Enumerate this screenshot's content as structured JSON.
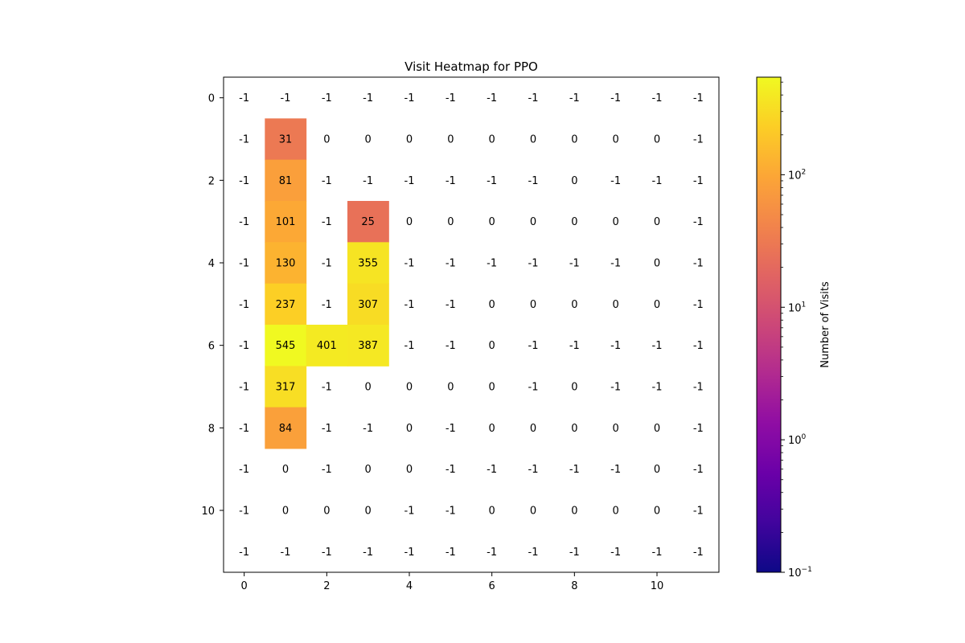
{
  "chart_data": {
    "type": "heatmap",
    "title": "Visit Heatmap for PPO",
    "xlabel": "",
    "ylabel": "",
    "x_tick_labels": [
      "0",
      "2",
      "4",
      "6",
      "8",
      "10"
    ],
    "x_tick_values": [
      0,
      2,
      4,
      6,
      8,
      10
    ],
    "y_tick_labels": [
      "0",
      "2",
      "4",
      "6",
      "8",
      "10"
    ],
    "y_tick_values": [
      0,
      2,
      4,
      6,
      8,
      10
    ],
    "colormap": "plasma",
    "color_scale": "log",
    "clim": [
      0.1,
      545
    ],
    "colorbar": {
      "label": "Number of Visits",
      "ticks": [
        {
          "value": 0.1,
          "base": "10",
          "exp": "−1"
        },
        {
          "value": 1,
          "base": "10",
          "exp": "0"
        },
        {
          "value": 10,
          "base": "10",
          "exp": "1"
        },
        {
          "value": 100,
          "base": "10",
          "exp": "2"
        }
      ]
    },
    "grid": false,
    "rows": 12,
    "cols": 12,
    "values": [
      [
        -1,
        -1,
        -1,
        -1,
        -1,
        -1,
        -1,
        -1,
        -1,
        -1,
        -1,
        -1
      ],
      [
        -1,
        31,
        0,
        0,
        0,
        0,
        0,
        0,
        0,
        0,
        0,
        -1
      ],
      [
        -1,
        81,
        -1,
        -1,
        -1,
        -1,
        -1,
        -1,
        0,
        -1,
        -1,
        -1
      ],
      [
        -1,
        101,
        -1,
        25,
        0,
        0,
        0,
        0,
        0,
        0,
        0,
        -1
      ],
      [
        -1,
        130,
        -1,
        355,
        -1,
        -1,
        -1,
        -1,
        -1,
        -1,
        0,
        -1
      ],
      [
        -1,
        237,
        -1,
        307,
        -1,
        -1,
        0,
        0,
        0,
        0,
        0,
        -1
      ],
      [
        -1,
        545,
        401,
        387,
        -1,
        -1,
        0,
        -1,
        -1,
        -1,
        -1,
        -1
      ],
      [
        -1,
        317,
        -1,
        0,
        0,
        0,
        0,
        -1,
        0,
        -1,
        -1,
        -1
      ],
      [
        -1,
        84,
        -1,
        -1,
        0,
        -1,
        0,
        0,
        0,
        0,
        0,
        -1
      ],
      [
        -1,
        0,
        -1,
        0,
        0,
        -1,
        -1,
        -1,
        -1,
        -1,
        0,
        -1
      ],
      [
        -1,
        0,
        0,
        0,
        -1,
        -1,
        0,
        0,
        0,
        0,
        0,
        -1
      ],
      [
        -1,
        -1,
        -1,
        -1,
        -1,
        -1,
        -1,
        -1,
        -1,
        -1,
        -1,
        -1
      ]
    ]
  }
}
